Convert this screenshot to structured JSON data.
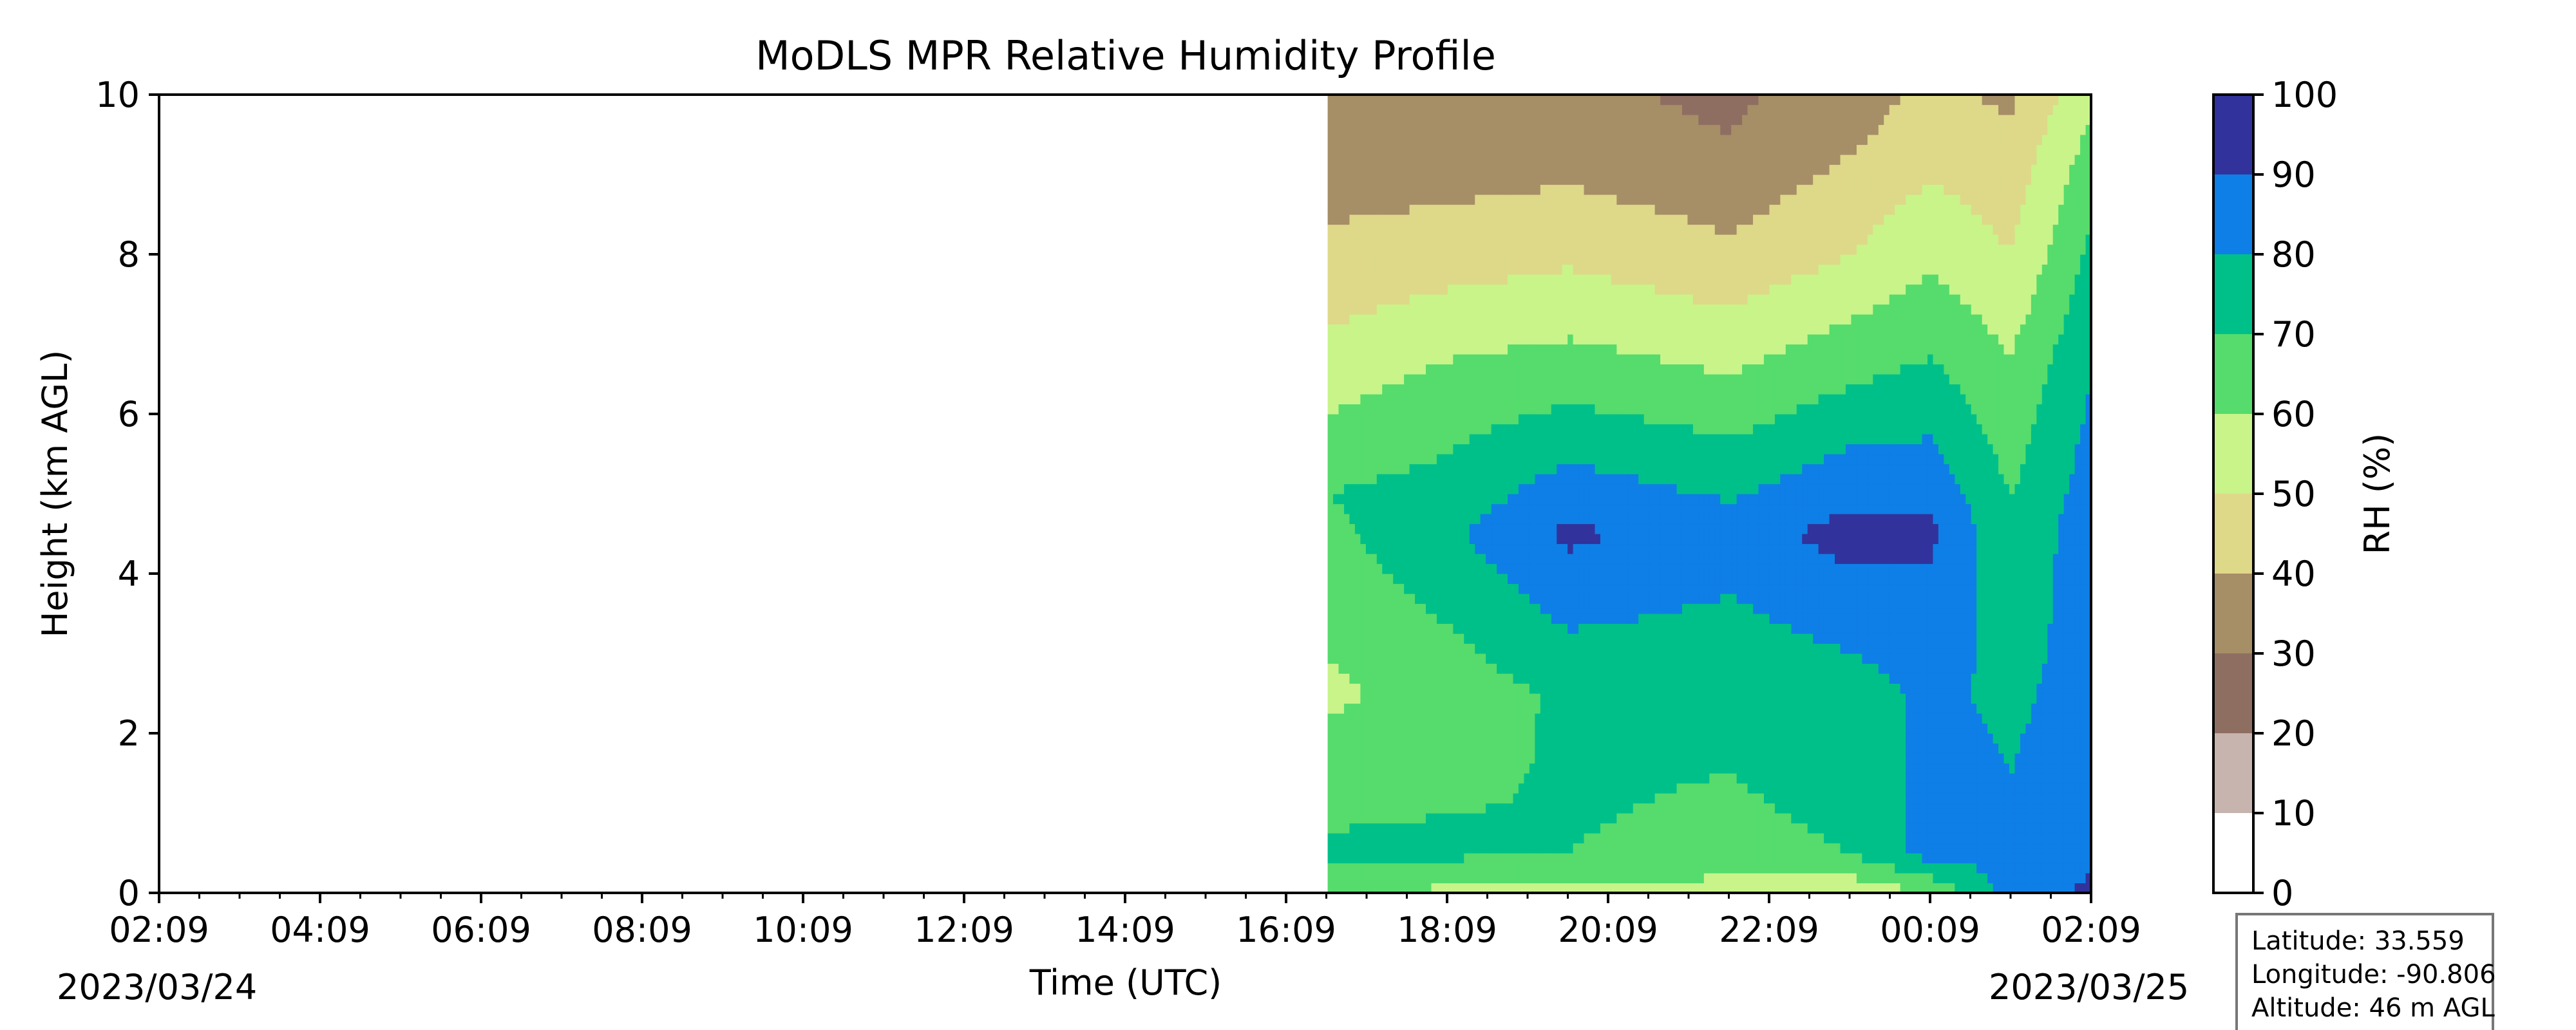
{
  "chart_data": {
    "type": "heatmap",
    "title": "MoDLS MPR Relative Humidity Profile",
    "xlabel": "Time (UTC)",
    "ylabel": "Height (km AGL)",
    "x_tick_labels": [
      "02:09",
      "04:09",
      "06:09",
      "08:09",
      "10:09",
      "12:09",
      "14:09",
      "16:09",
      "18:09",
      "20:09",
      "22:09",
      "00:09",
      "02:09"
    ],
    "x_range_hours": [
      0,
      24
    ],
    "start_date": "2023/03/24",
    "end_date": "2023/03/25",
    "ylim": [
      0,
      10
    ],
    "y_ticks": [
      0,
      2,
      4,
      6,
      8,
      10
    ],
    "data_start_time": "16:40",
    "colorbar": {
      "label": "RH (%)",
      "ticks": [
        0,
        10,
        20,
        30,
        40,
        50,
        60,
        70,
        80,
        90,
        100
      ],
      "colors": [
        "#ffffff",
        "#c8b4ae",
        "#8f6e62",
        "#a68e66",
        "#ded889",
        "#c8f48a",
        "#55dc6c",
        "#00c08a",
        "#0e7fe6",
        "#32329c"
      ]
    },
    "rh_profile_stages": [
      {
        "time": "16:40",
        "heights_km": [
          0,
          0.5,
          2.5,
          5.0,
          6.5,
          8.0,
          9.5,
          10
        ],
        "rh": [
          60,
          72,
          58,
          70,
          55,
          42,
          34,
          32
        ]
      },
      {
        "time": "18:09",
        "heights_km": [
          0,
          0.5,
          2.5,
          4.5,
          6.5,
          8.0,
          9.5,
          10
        ],
        "rh": [
          58,
          72,
          64,
          78,
          62,
          45,
          33,
          31
        ]
      },
      {
        "time": "19:40",
        "heights_km": [
          0,
          0.5,
          2.5,
          4.5,
          6.5,
          8.0,
          9.5,
          10
        ],
        "rh": [
          55,
          70,
          72,
          92,
          65,
          48,
          34,
          32
        ]
      },
      {
        "time": "21:40",
        "heights_km": [
          0,
          0.5,
          2.5,
          4.5,
          6.5,
          8.0,
          9.5,
          10
        ],
        "rh": [
          55,
          68,
          72,
          85,
          60,
          42,
          30,
          28
        ]
      },
      {
        "time": "23:09",
        "heights_km": [
          0,
          0.5,
          2.5,
          4.5,
          6.5,
          8.0,
          9.5,
          10
        ],
        "rh": [
          52,
          70,
          75,
          94,
          68,
          50,
          38,
          36
        ]
      },
      {
        "time": "00:09",
        "heights_km": [
          0,
          0.5,
          2.5,
          4.5,
          6.5,
          8.0,
          9.5,
          10
        ],
        "rh": [
          60,
          85,
          82,
          92,
          72,
          58,
          45,
          42
        ]
      },
      {
        "time": "01:09",
        "heights_km": [
          0,
          0.5,
          2.5,
          4.5,
          6.5,
          8.0,
          9.5,
          10
        ],
        "rh": [
          85,
          82,
          78,
          72,
          62,
          50,
          42,
          38
        ]
      },
      {
        "time": "02:09",
        "heights_km": [
          0,
          0.5,
          2.5,
          4.5,
          6.5,
          8.0,
          9.5,
          10
        ],
        "rh": [
          92,
          88,
          84,
          86,
          80,
          72,
          62,
          58
        ]
      }
    ]
  },
  "info_box": {
    "latitude": "Latitude: 33.559",
    "longitude": "Longitude: -90.806",
    "altitude": "Altitude: 46 m AGL"
  }
}
